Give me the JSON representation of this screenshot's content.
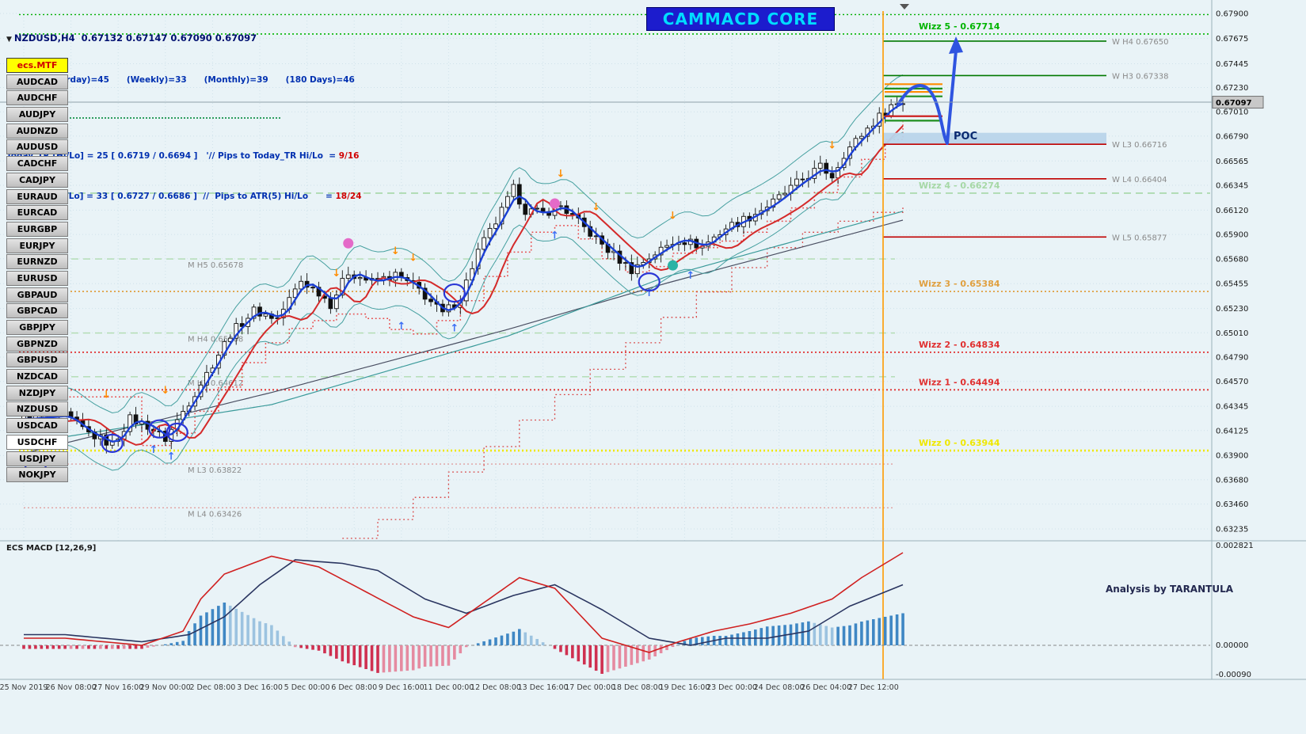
{
  "app": {
    "bg": "#e9f3f7"
  },
  "header": {
    "dropdown_icon": "▼",
    "symbol": "NZDUSD,H4",
    "ohlc": "0.67132 0.67147 0.67090 0.67097",
    "atr_summary": "ATR :- (Yesterday)=45      (Weekly)=33      (Monthly)=39      (180 Days)=46",
    "today_tr_text": "Today_TR [Hi/Lo] = 25 [ 0.6719 / 0.6694 ]   '// Pips to Today_TR Hi/Lo  =",
    "today_tr_value": "9/16",
    "atr5_text": "ATR(5)     [Hi/Lo] = 33 [ 0.6727 / 0.6686 ]  //  Pips to ATR(5) Hi/Lo      =",
    "atr5_value": "18/24",
    "banner": "CAMMACD CORE"
  },
  "sidebar": {
    "mtf": "ecs.MTF",
    "selected": "USDCHF",
    "pairs": [
      "AUDCAD",
      "AUDCHF",
      "AUDJPY",
      "AUDNZD",
      "AUDUSD",
      "CADCHF",
      "CADJPY",
      "EURAUD",
      "EURCAD",
      "EURGBP",
      "EURJPY",
      "EURNZD",
      "EURUSD",
      "GBPAUD",
      "GBPCAD",
      "GBPJPY",
      "GBPNZD",
      "GBPUSD",
      "NZDCAD",
      "NZDJPY",
      "NZDUSD",
      "USDCAD",
      "USDCHF",
      "USDJPY",
      "NOKJPY"
    ]
  },
  "annotations": {
    "poc": "POC",
    "analysis": "Analysis by TARANTULA"
  },
  "macd_panel": {
    "label": "ECS MACD [12,26,9]"
  },
  "chart_data": {
    "type": "candlestick",
    "title": "NZDUSD,H4",
    "symbol": "NZDUSD",
    "timeframe": "H4",
    "current_ohlc": {
      "open": 0.67132,
      "high": 0.67147,
      "low": 0.6709,
      "close": 0.67097
    },
    "price_axis": {
      "top_value": 0.679,
      "bottom_value": 0.63235,
      "current_price": "0.67097",
      "ticks": [
        "0.67900",
        "0.67675",
        "0.67445",
        "0.67230",
        "0.67010",
        "0.66790",
        "0.66565",
        "0.66345",
        "0.66120",
        "0.65900",
        "0.65680",
        "0.65455",
        "0.65230",
        "0.65010",
        "0.64790",
        "0.64570",
        "0.64345",
        "0.64125",
        "0.63900",
        "0.63680",
        "0.63460",
        "0.63235"
      ]
    },
    "time_axis": {
      "labels": [
        "25 Nov 2019",
        "26 Nov 08:00",
        "27 Nov 16:00",
        "29 Nov 00:00",
        "2 Dec 08:00",
        "3 Dec 16:00",
        "5 Dec 00:00",
        "6 Dec 08:00",
        "9 Dec 16:00",
        "11 Dec 00:00",
        "12 Dec 08:00",
        "13 Dec 16:00",
        "17 Dec 00:00",
        "18 Dec 08:00",
        "19 Dec 16:00",
        "23 Dec 00:00",
        "24 Dec 08:00",
        "26 Dec 04:00",
        "27 Dec 12:00"
      ]
    },
    "candles": {
      "count": 150,
      "path_anchors": [
        [
          0,
          0.6423
        ],
        [
          7,
          0.6426
        ],
        [
          11,
          0.641
        ],
        [
          15,
          0.64
        ],
        [
          18,
          0.6423
        ],
        [
          21,
          0.6417
        ],
        [
          24,
          0.6405
        ],
        [
          27,
          0.643
        ],
        [
          31,
          0.6464
        ],
        [
          35,
          0.65
        ],
        [
          39,
          0.6521
        ],
        [
          43,
          0.6514
        ],
        [
          47,
          0.6548
        ],
        [
          50,
          0.6538
        ],
        [
          52,
          0.6527
        ],
        [
          55,
          0.6556
        ],
        [
          59,
          0.6547
        ],
        [
          63,
          0.6553
        ],
        [
          67,
          0.654
        ],
        [
          71,
          0.6518
        ],
        [
          74,
          0.6533
        ],
        [
          77,
          0.6575
        ],
        [
          80,
          0.6601
        ],
        [
          83,
          0.6631
        ],
        [
          85,
          0.6612
        ],
        [
          88,
          0.6609
        ],
        [
          91,
          0.6616
        ],
        [
          95,
          0.6596
        ],
        [
          99,
          0.6576
        ],
        [
          103,
          0.6558
        ],
        [
          107,
          0.6573
        ],
        [
          111,
          0.6586
        ],
        [
          115,
          0.6579
        ],
        [
          119,
          0.6596
        ],
        [
          123,
          0.6606
        ],
        [
          127,
          0.6619
        ],
        [
          131,
          0.6636
        ],
        [
          135,
          0.6651
        ],
        [
          137,
          0.6643
        ],
        [
          139,
          0.6663
        ],
        [
          143,
          0.6686
        ],
        [
          147,
          0.6707
        ],
        [
          149,
          0.671
        ]
      ]
    },
    "overlays": {
      "ma_fast_color": "#1a3fd4",
      "ma_slow_color": "#d42a2a",
      "band_color": "#46a0a0",
      "long_ma_dark": [
        [
          0,
          0.6392
        ],
        [
          42,
          0.6447
        ],
        [
          82,
          0.6504
        ],
        [
          109,
          0.6546
        ],
        [
          149,
          0.6603
        ]
      ],
      "long_ma_teal": [
        [
          0,
          0.6401
        ],
        [
          42,
          0.6436
        ],
        [
          82,
          0.6498
        ],
        [
          109,
          0.6552
        ],
        [
          149,
          0.6611
        ]
      ],
      "trail_near": [
        [
          0,
          0.6443
        ],
        [
          19,
          0.6443
        ],
        [
          20,
          0.6399
        ],
        [
          25,
          0.641
        ],
        [
          29,
          0.643
        ],
        [
          33,
          0.6452
        ],
        [
          37,
          0.6474
        ],
        [
          41,
          0.6492
        ],
        [
          45,
          0.6505
        ],
        [
          49,
          0.6512
        ],
        [
          53,
          0.6518
        ],
        [
          58,
          0.6514
        ],
        [
          62,
          0.6504
        ],
        [
          66,
          0.65
        ],
        [
          70,
          0.6512
        ],
        [
          74,
          0.653
        ],
        [
          78,
          0.6552
        ],
        [
          82,
          0.6574
        ],
        [
          86,
          0.6592
        ],
        [
          90,
          0.6598
        ],
        [
          94,
          0.6586
        ],
        [
          98,
          0.6568
        ],
        [
          102,
          0.6556
        ],
        [
          106,
          0.6561
        ],
        [
          110,
          0.6573
        ],
        [
          114,
          0.6578
        ],
        [
          118,
          0.6584
        ],
        [
          122,
          0.6592
        ],
        [
          126,
          0.6602
        ],
        [
          130,
          0.6614
        ],
        [
          134,
          0.6628
        ],
        [
          138,
          0.6642
        ],
        [
          142,
          0.6658
        ],
        [
          146,
          0.6676
        ],
        [
          149,
          0.6692
        ]
      ],
      "trail_far": [
        [
          54,
          0.6315
        ],
        [
          60,
          0.6332
        ],
        [
          66,
          0.6352
        ],
        [
          72,
          0.6375
        ],
        [
          78,
          0.6398
        ],
        [
          84,
          0.6422
        ],
        [
          90,
          0.6445
        ],
        [
          96,
          0.6468
        ],
        [
          102,
          0.6492
        ],
        [
          108,
          0.6515
        ],
        [
          114,
          0.6538
        ],
        [
          120,
          0.656
        ],
        [
          126,
          0.6578
        ],
        [
          132,
          0.6592
        ],
        [
          138,
          0.6602
        ],
        [
          144,
          0.661
        ],
        [
          149,
          0.6615
        ]
      ]
    },
    "levels": {
      "wizz": [
        {
          "label": "",
          "value": 0.6789,
          "color": "#00b000",
          "style": "dotted",
          "width": 1.4
        },
        {
          "label": "Wizz 5 - 0.67714",
          "value": 0.67714,
          "color": "#00b400",
          "style": "dotted",
          "width": 1.6
        },
        {
          "label": "Wizz 4 - 0.66274",
          "value": 0.66274,
          "color": "#a6d8a6",
          "style": "dashed",
          "width": 1.6
        },
        {
          "label": "Wizz 3 - 0.65384",
          "value": 0.65384,
          "color": "#e0a040",
          "style": "dotted",
          "width": 1.8
        },
        {
          "label": "Wizz 2 - 0.64834",
          "value": 0.64834,
          "color": "#e03030",
          "style": "dotted",
          "width": 1.8
        },
        {
          "label": "Wizz 1 - 0.64494",
          "value": 0.64494,
          "color": "#e03030",
          "style": "dotted",
          "width": 1.8
        },
        {
          "label": "Wizz 0 - 0.63944",
          "value": 0.63944,
          "color": "#efe800",
          "style": "dotted",
          "width": 2.6
        }
      ],
      "weekly": [
        {
          "label": "W  H4 0.67650",
          "value": 0.6765,
          "color": "#007800"
        },
        {
          "label": "W  H3 0.67338",
          "value": 0.67338,
          "color": "#007800"
        },
        {
          "label": "W  L3 0.66716",
          "value": 0.66716,
          "color": "#c00000"
        },
        {
          "label": "W  L4 0.66404",
          "value": 0.66404,
          "color": "#c00000"
        },
        {
          "label": "W  L5 0.65877",
          "value": 0.65877,
          "color": "#c00000"
        }
      ],
      "monthly": [
        {
          "label": "M  H5 0.65678",
          "value": 0.65678,
          "color": "#b0dcb0",
          "style": "dashed"
        },
        {
          "label": "M  H4 0.65008",
          "value": 0.65008,
          "color": "#b0dcb0",
          "style": "dashed"
        },
        {
          "label": "M  H3 0.64612",
          "value": 0.64612,
          "color": "#b0dcb0",
          "style": "dashed"
        },
        {
          "label": "M  L3 0.63822",
          "value": 0.63822,
          "color": "#e0a0a0",
          "style": "dotted"
        },
        {
          "label": "M  L4 0.63426",
          "value": 0.63426,
          "color": "#e0a0a0",
          "style": "dotted"
        }
      ]
    },
    "poc_zone": {
      "top": 0.6682,
      "bottom": 0.66716,
      "fill": "#b9d4ea"
    },
    "open_lines": [
      {
        "price": 0.6726,
        "color": "#ff8c00"
      },
      {
        "price": 0.6722,
        "color": "#1f8f1f"
      },
      {
        "price": 0.6719,
        "color": "#ff8c00"
      },
      {
        "price": 0.6715,
        "color": "#1f8f1f"
      },
      {
        "price": 0.6697,
        "color": "#cc2020"
      },
      {
        "price": 0.6693,
        "color": "#1f8f1f"
      }
    ],
    "signals": {
      "sell_arrows": [
        [
          14,
          0.6442
        ],
        [
          24,
          0.6446
        ],
        [
          53,
          0.6552
        ],
        [
          63,
          0.6572
        ],
        [
          66,
          0.6566
        ],
        [
          91,
          0.6642
        ],
        [
          97,
          0.6612
        ],
        [
          110,
          0.6604
        ],
        [
          137,
          0.6668
        ]
      ],
      "buy_arrows": [
        [
          22,
          0.64
        ],
        [
          25,
          0.6394
        ],
        [
          64,
          0.6512
        ],
        [
          73,
          0.651
        ],
        [
          90,
          0.6594
        ],
        [
          106,
          0.6542
        ],
        [
          113,
          0.6558
        ]
      ],
      "magenta_dots": [
        [
          55,
          0.6582
        ],
        [
          90,
          0.6618
        ]
      ],
      "teal_dots": [
        [
          110,
          0.6562
        ]
      ],
      "blue_circles": [
        [
          2,
          0.6378
        ],
        [
          15,
          0.6401
        ],
        [
          23,
          0.6414
        ],
        [
          26,
          0.6411
        ],
        [
          73,
          0.6537
        ],
        [
          106,
          0.6547
        ]
      ]
    },
    "projection_arrow": {
      "color": "#2f54e0",
      "target_label": "Wizz 5 - 0.67714"
    },
    "time_separator_index": 145,
    "macd": {
      "params": "12,26,9",
      "axis_labels": [
        "0.002821",
        "0.00000",
        "-0.00090"
      ],
      "ylim": [
        -0.0009,
        0.002821
      ],
      "macd_line": [
        [
          0,
          0.0002
        ],
        [
          7,
          0.0002
        ],
        [
          20,
          0.0
        ],
        [
          27,
          0.0004
        ],
        [
          30,
          0.0013
        ],
        [
          34,
          0.002
        ],
        [
          42,
          0.0025
        ],
        [
          50,
          0.0022
        ],
        [
          58,
          0.0015
        ],
        [
          66,
          0.0008
        ],
        [
          72,
          0.0005
        ],
        [
          78,
          0.0012
        ],
        [
          84,
          0.0019
        ],
        [
          90,
          0.0016
        ],
        [
          98,
          0.0002
        ],
        [
          106,
          -0.0002
        ],
        [
          111,
          0.0001
        ],
        [
          117,
          0.0004
        ],
        [
          123,
          0.0006
        ],
        [
          130,
          0.0009
        ],
        [
          137,
          0.0013
        ],
        [
          142,
          0.0019
        ],
        [
          149,
          0.0026
        ]
      ],
      "signal_line": [
        [
          0,
          0.0003
        ],
        [
          7,
          0.0003
        ],
        [
          20,
          0.0001
        ],
        [
          28,
          0.0003
        ],
        [
          34,
          0.0008
        ],
        [
          40,
          0.0017
        ],
        [
          46,
          0.0024
        ],
        [
          54,
          0.0023
        ],
        [
          60,
          0.0021
        ],
        [
          68,
          0.0013
        ],
        [
          75,
          0.0009
        ],
        [
          83,
          0.0014
        ],
        [
          90,
          0.0017
        ],
        [
          98,
          0.001
        ],
        [
          106,
          0.0002
        ],
        [
          113,
          0.0
        ],
        [
          119,
          0.0002
        ],
        [
          126,
          0.0002
        ],
        [
          133,
          0.0004
        ],
        [
          140,
          0.0011
        ],
        [
          149,
          0.0017
        ]
      ]
    }
  }
}
